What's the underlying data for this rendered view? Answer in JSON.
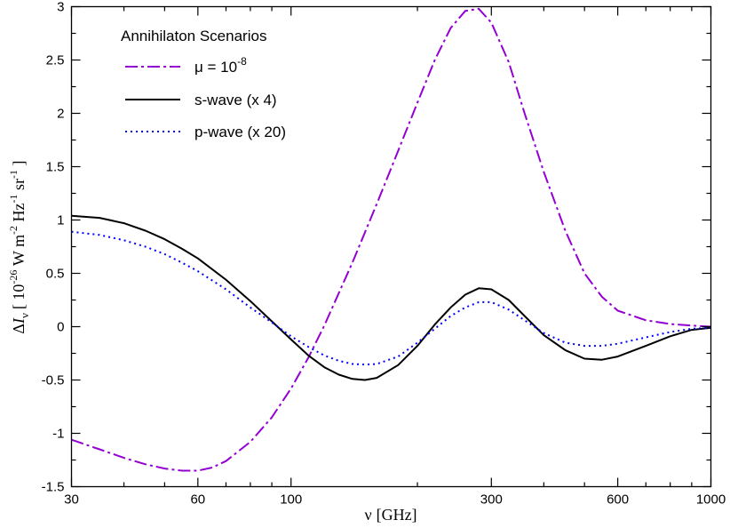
{
  "chart_data": {
    "type": "line",
    "x_scale": "log",
    "xlabel": {
      "symbol": "ν",
      "unit": "[GHz]"
    },
    "ylabel": {
      "prefix": "Δ",
      "var": "I",
      "sub": "ν",
      "open": "[ 10",
      "exp1": "-26",
      "w": " W m",
      "exp2": "-2",
      "hz": " Hz",
      "exp3": "-1",
      "sr": " sr",
      "exp4": "-1",
      "close": " ]"
    },
    "xlim": [
      30,
      1000
    ],
    "ylim": [
      -1.5,
      3
    ],
    "x_ticks": [
      30,
      60,
      100,
      300,
      600,
      1000
    ],
    "x_tick_labels": [
      "30",
      "60",
      "100",
      "300",
      "600",
      "1000"
    ],
    "y_ticks": [
      -1.5,
      -1,
      -0.5,
      0,
      0.5,
      1,
      1.5,
      2,
      2.5,
      3
    ],
    "y_tick_labels": [
      "-1.5",
      "-1",
      "-0.5",
      "0",
      "0.5",
      "1",
      "1.5",
      "2",
      "2.5",
      "3"
    ],
    "grid": false,
    "legend": {
      "placement": "top-left",
      "title": "Annihilaton Scenarios"
    },
    "series": [
      {
        "name": "μ = 10",
        "name_sup": "-8",
        "color": "#9400d3",
        "style": "dash-dot",
        "x": [
          30,
          35,
          40,
          45,
          50,
          55,
          60,
          65,
          70,
          80,
          90,
          100,
          110,
          120,
          140,
          160,
          180,
          200,
          220,
          240,
          260,
          280,
          300,
          330,
          360,
          400,
          450,
          500,
          550,
          600,
          700,
          800,
          900,
          1000
        ],
        "y": [
          -1.06,
          -1.15,
          -1.23,
          -1.29,
          -1.33,
          -1.35,
          -1.35,
          -1.32,
          -1.26,
          -1.08,
          -0.85,
          -0.58,
          -0.29,
          0.01,
          0.6,
          1.15,
          1.65,
          2.1,
          2.5,
          2.8,
          2.96,
          2.98,
          2.85,
          2.48,
          2.0,
          1.45,
          0.9,
          0.5,
          0.28,
          0.15,
          0.06,
          0.025,
          0.01,
          0.0
        ]
      },
      {
        "name": "s-wave (x 4)",
        "color": "#000000",
        "style": "solid",
        "x": [
          30,
          35,
          40,
          45,
          50,
          55,
          60,
          70,
          80,
          90,
          100,
          110,
          120,
          130,
          140,
          150,
          160,
          180,
          200,
          220,
          240,
          260,
          280,
          300,
          330,
          360,
          400,
          450,
          500,
          550,
          600,
          700,
          800,
          900,
          1000
        ],
        "y": [
          1.04,
          1.02,
          0.97,
          0.9,
          0.82,
          0.73,
          0.64,
          0.44,
          0.24,
          0.05,
          -0.12,
          -0.27,
          -0.38,
          -0.45,
          -0.49,
          -0.5,
          -0.48,
          -0.36,
          -0.18,
          0.02,
          0.18,
          0.3,
          0.36,
          0.35,
          0.25,
          0.1,
          -0.08,
          -0.22,
          -0.3,
          -0.31,
          -0.28,
          -0.18,
          -0.09,
          -0.03,
          -0.01
        ]
      },
      {
        "name": "p-wave (x 20)",
        "color": "#0000ff",
        "style": "dotted",
        "x": [
          30,
          35,
          40,
          45,
          50,
          55,
          60,
          70,
          80,
          90,
          100,
          110,
          120,
          130,
          140,
          150,
          160,
          180,
          200,
          220,
          240,
          260,
          280,
          300,
          330,
          360,
          400,
          450,
          500,
          550,
          600,
          700,
          800,
          900,
          1000
        ],
        "y": [
          0.89,
          0.86,
          0.81,
          0.75,
          0.68,
          0.6,
          0.52,
          0.35,
          0.18,
          0.04,
          -0.09,
          -0.19,
          -0.27,
          -0.32,
          -0.35,
          -0.355,
          -0.35,
          -0.28,
          -0.15,
          -0.02,
          0.1,
          0.18,
          0.23,
          0.23,
          0.16,
          0.06,
          -0.06,
          -0.15,
          -0.18,
          -0.18,
          -0.16,
          -0.1,
          -0.05,
          -0.02,
          -0.01
        ]
      }
    ]
  }
}
